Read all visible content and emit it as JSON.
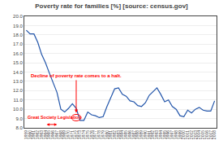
{
  "chart_data": {
    "type": "line",
    "title": "Poverty rate for families [%] [source: census.gov]",
    "x": [
      1959,
      1960,
      1961,
      1962,
      1963,
      1964,
      1965,
      1966,
      1967,
      1968,
      1969,
      1970,
      1971,
      1972,
      1973,
      1974,
      1975,
      1976,
      1977,
      1978,
      1979,
      1980,
      1981,
      1982,
      1983,
      1984,
      1985,
      1986,
      1987,
      1988,
      1989,
      1990,
      1991,
      1992,
      1993,
      1994,
      1995,
      1996,
      1997,
      1998,
      1999,
      2000,
      2001,
      2002,
      2003,
      2004,
      2005,
      2006,
      2007,
      2008
    ],
    "values": [
      18.5,
      18.1,
      18.1,
      17.2,
      15.9,
      15.0,
      13.9,
      12.8,
      11.8,
      10.0,
      9.7,
      10.1,
      10.6,
      10.1,
      8.8,
      8.8,
      9.7,
      9.4,
      9.3,
      9.1,
      9.2,
      10.3,
      11.2,
      12.2,
      12.3,
      11.6,
      11.4,
      10.9,
      10.8,
      10.4,
      10.3,
      10.7,
      11.5,
      11.9,
      12.3,
      11.6,
      10.8,
      11.0,
      10.3,
      10.0,
      9.3,
      9.2,
      9.9,
      9.6,
      10.0,
      10.2,
      9.9,
      9.8,
      9.8,
      10.9
    ],
    "color": "#2255AA",
    "xlim": [
      1958.5,
      2008.5
    ],
    "xticks": [
      1959,
      1960,
      1961,
      1962,
      1963,
      1964,
      1965,
      1966,
      1967,
      1968,
      1969,
      1970,
      1971,
      1972,
      1973,
      1974,
      1975,
      1976,
      1977,
      1978,
      1979,
      1980,
      1981,
      1982,
      1983,
      1984,
      1985,
      1986,
      1987,
      1988,
      1989,
      1990,
      1991,
      1992,
      1993,
      1994,
      1995,
      1996,
      1997,
      1998,
      1999,
      2000,
      2001,
      2002,
      2003,
      2004,
      2005,
      2006,
      2007,
      2008
    ],
    "ylim": [
      8.0,
      20.0
    ],
    "yticks": [
      {
        "value": 8,
        "label": "8.0"
      },
      {
        "value": 9,
        "label": "9.0"
      },
      {
        "value": 10,
        "label": "10.0"
      },
      {
        "value": 11,
        "label": "11.0"
      },
      {
        "value": 12,
        "label": "12.0"
      },
      {
        "value": 13,
        "label": "13.0"
      },
      {
        "value": 14,
        "label": "14.0"
      },
      {
        "value": 15,
        "label": "15.0"
      },
      {
        "value": 16,
        "label": "16.0"
      },
      {
        "value": 17,
        "label": "17.0"
      },
      {
        "value": 18,
        "label": "18.0"
      },
      {
        "value": 19,
        "label": "19.0"
      },
      {
        "value": 20,
        "label": "20.0"
      }
    ],
    "grid": "y",
    "annotations": [
      {
        "text": "Decline of poverty rate comes to a halt.",
        "x": 1972,
        "y": 9.1,
        "color": "red"
      },
      {
        "text": "Great Society Legislation",
        "x_start": 1964,
        "x_end": 1967,
        "color": "red"
      }
    ]
  }
}
